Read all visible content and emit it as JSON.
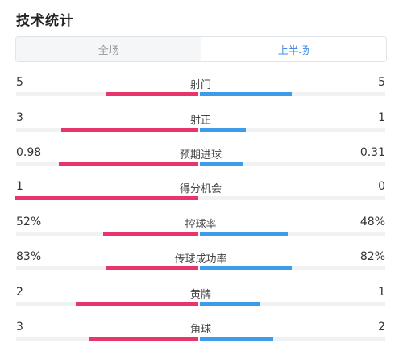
{
  "title": "技术统计",
  "tabs": {
    "all": "全场",
    "first_half": "上半场"
  },
  "active_tab": "first_half",
  "colors": {
    "home": "#e8336b",
    "away": "#3d9be9",
    "active_tab": "#3f8fea"
  },
  "stats": [
    {
      "label": "射门",
      "home": "5",
      "away": "5",
      "home_share": 0.5,
      "away_share": 0.5
    },
    {
      "label": "射正",
      "home": "3",
      "away": "1",
      "home_share": 0.75,
      "away_share": 0.25
    },
    {
      "label": "预期进球",
      "home": "0.98",
      "away": "0.31",
      "home_share": 0.76,
      "away_share": 0.24
    },
    {
      "label": "得分机会",
      "home": "1",
      "away": "0",
      "home_share": 1.0,
      "away_share": 0.0
    },
    {
      "label": "控球率",
      "home": "52%",
      "away": "48%",
      "home_share": 0.52,
      "away_share": 0.48
    },
    {
      "label": "传球成功率",
      "home": "83%",
      "away": "82%",
      "home_share": 0.5,
      "away_share": 0.5
    },
    {
      "label": "黄牌",
      "home": "2",
      "away": "1",
      "home_share": 0.67,
      "away_share": 0.33
    },
    {
      "label": "角球",
      "home": "3",
      "away": "2",
      "home_share": 0.6,
      "away_share": 0.4
    }
  ]
}
